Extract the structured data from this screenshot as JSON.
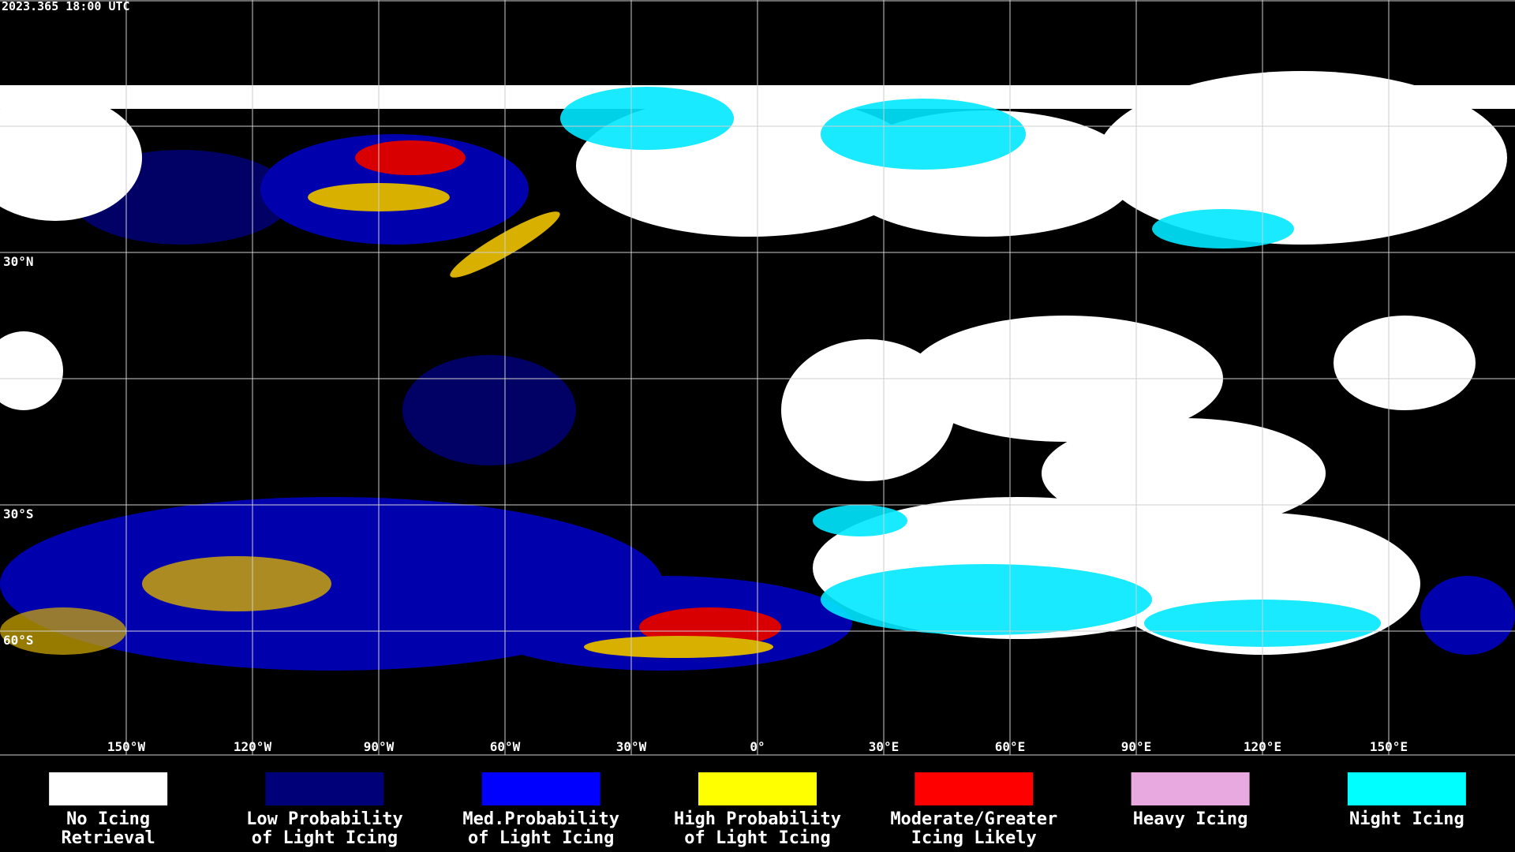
{
  "timestamp": "2023.365 18:00 UTC",
  "map": {
    "longitudes": [
      {
        "value": -150,
        "label": "150°W"
      },
      {
        "value": -120,
        "label": "120°W"
      },
      {
        "value": -90,
        "label": "90°W"
      },
      {
        "value": -60,
        "label": "60°W"
      },
      {
        "value": -30,
        "label": "30°W"
      },
      {
        "value": 0,
        "label": "0°"
      },
      {
        "value": 30,
        "label": "30°E"
      },
      {
        "value": 60,
        "label": "60°E"
      },
      {
        "value": 90,
        "label": "90°E"
      },
      {
        "value": 120,
        "label": "120°E"
      },
      {
        "value": 150,
        "label": "150°E"
      }
    ],
    "latitudes": [
      {
        "value": 30,
        "label": "30°N"
      },
      {
        "value": -30,
        "label": "30°S"
      },
      {
        "value": -60,
        "label": "60°S"
      }
    ]
  },
  "legend": [
    {
      "lines": [
        "No Icing",
        "Retrieval"
      ],
      "color": "#ffffff"
    },
    {
      "lines": [
        "Low Probability",
        "of Light Icing"
      ],
      "color": "#000078"
    },
    {
      "lines": [
        "Med.Probability",
        "of Light Icing"
      ],
      "color": "#0000ff"
    },
    {
      "lines": [
        "High Probability",
        "of Light Icing"
      ],
      "color": "#ffff00"
    },
    {
      "lines": [
        "Moderate/Greater",
        "Icing Likely"
      ],
      "color": "#ff0000"
    },
    {
      "lines": [
        "Heavy Icing"
      ],
      "color": "#e8a8e0"
    },
    {
      "lines": [
        "Night Icing"
      ],
      "color": "#00ffff"
    }
  ]
}
